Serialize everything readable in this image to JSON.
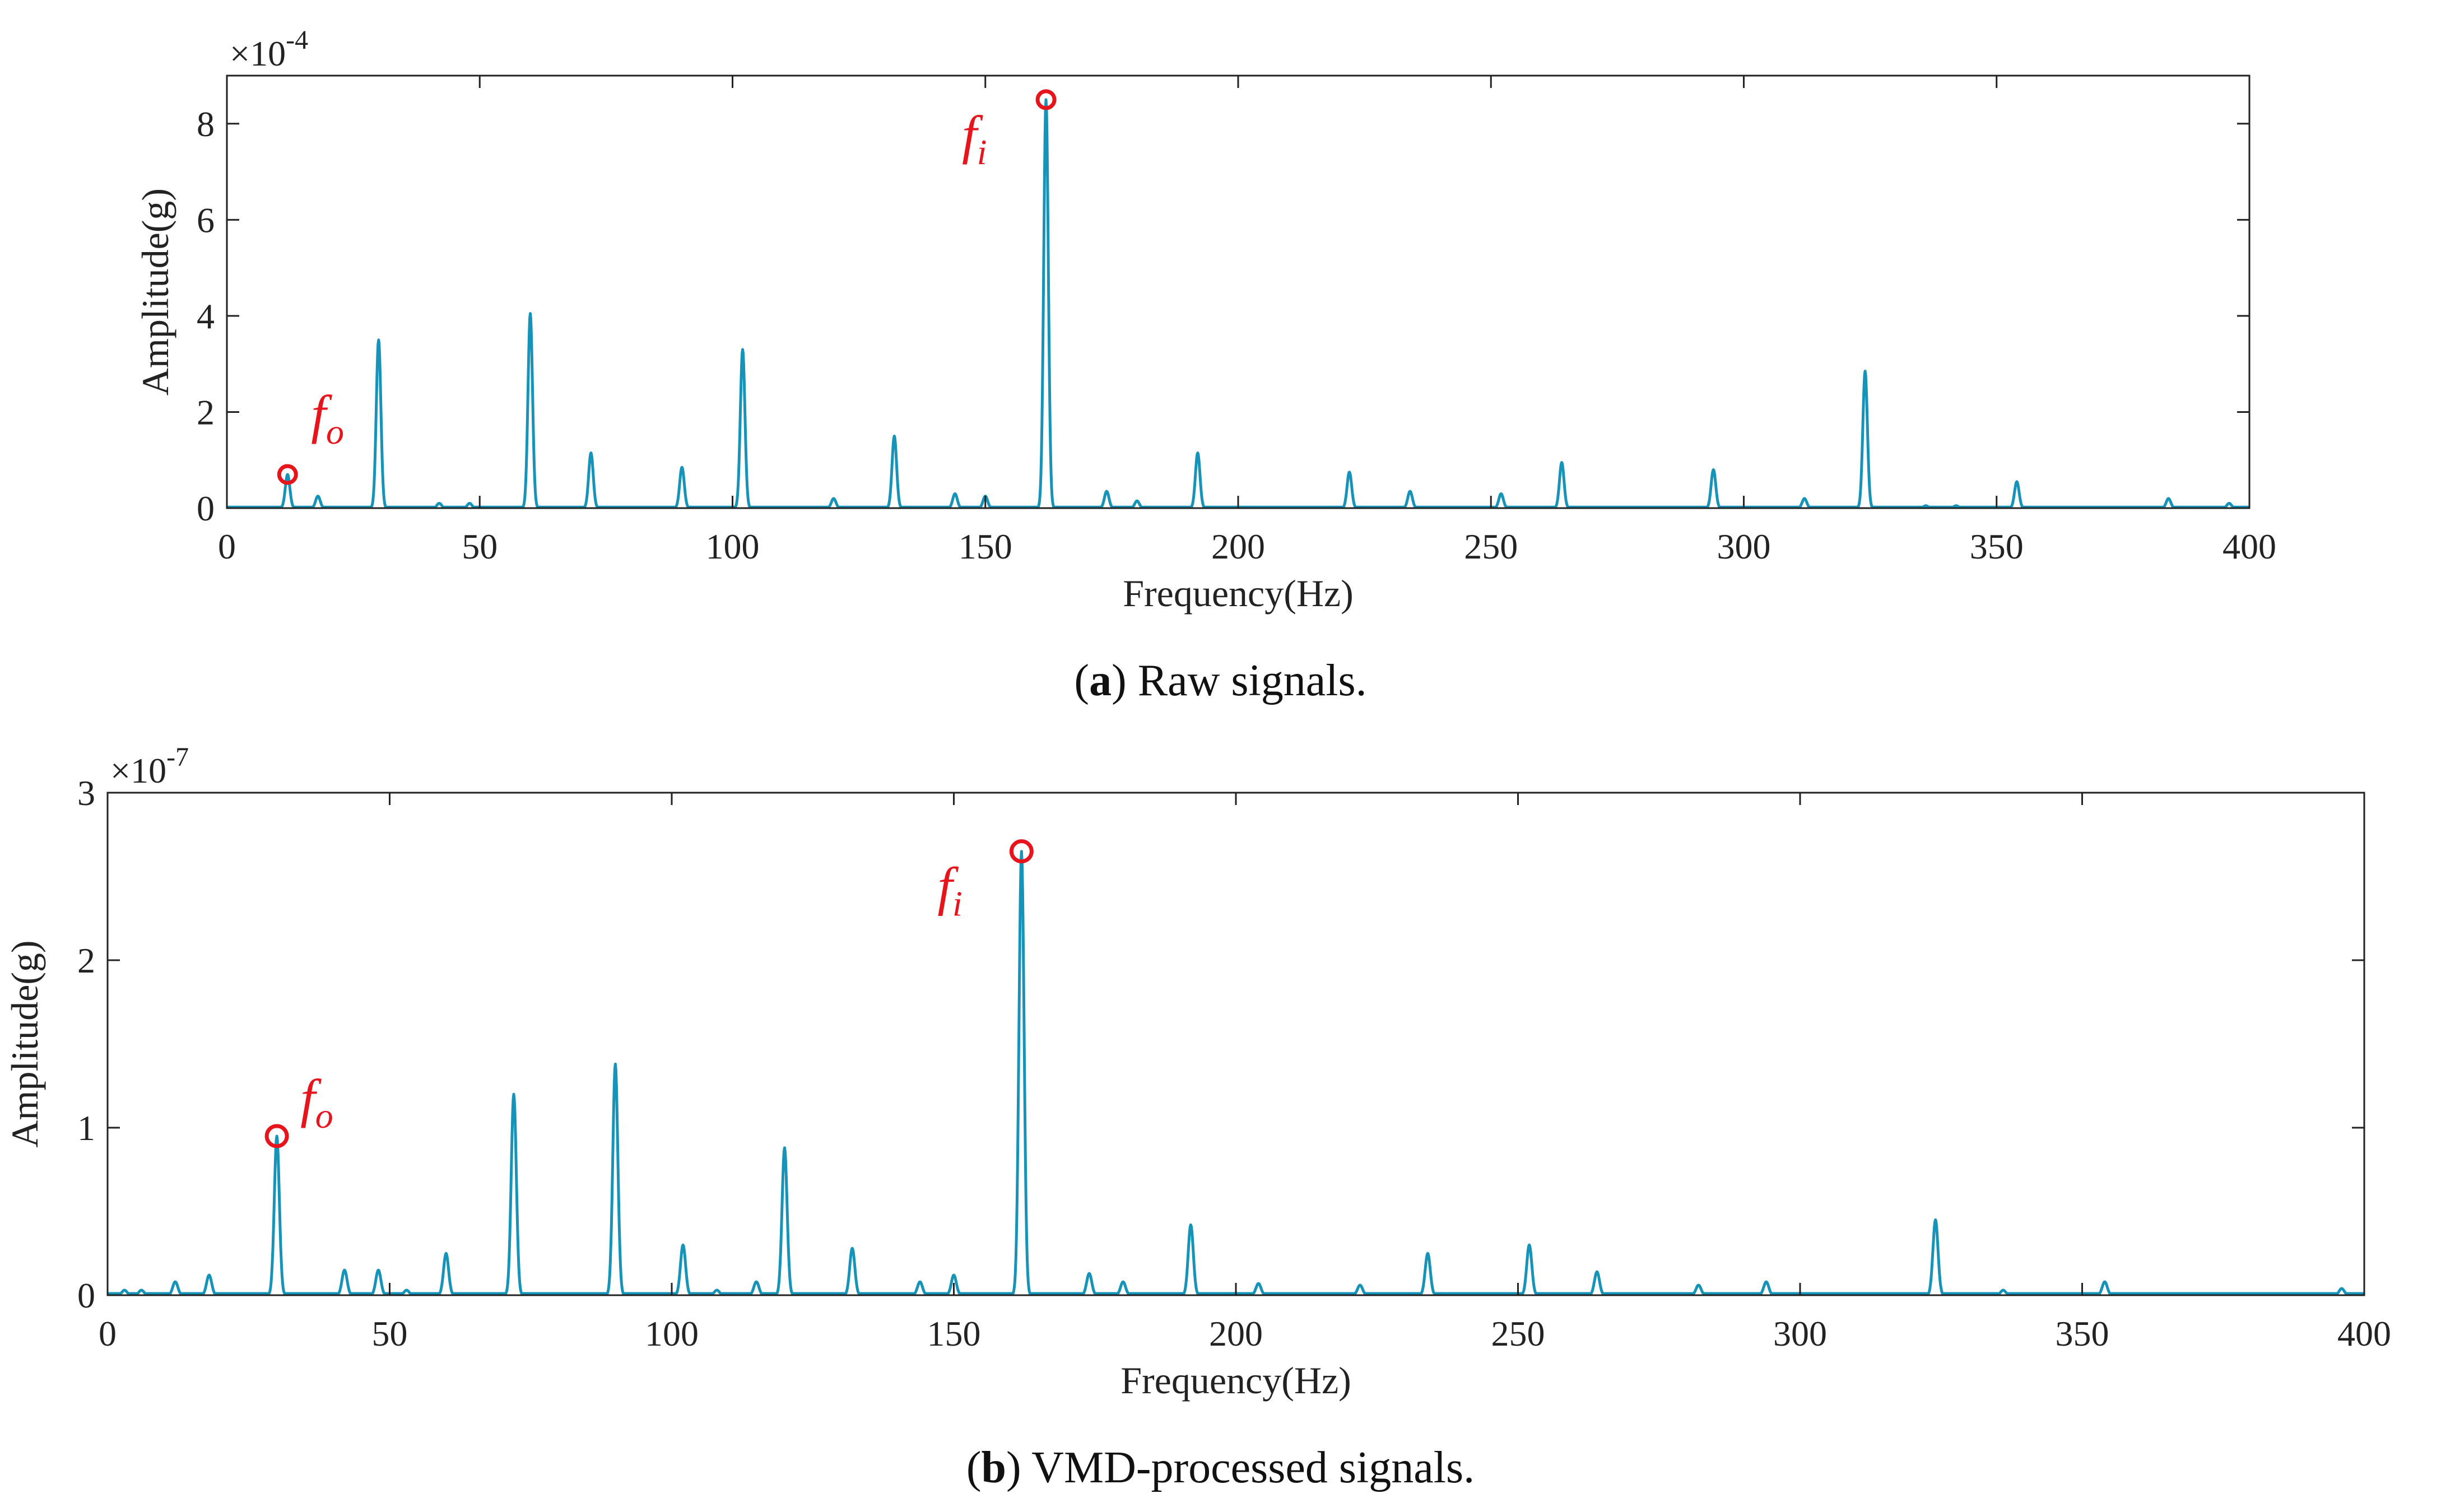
{
  "colors": {
    "line": "#1693b8",
    "marker": "#e8141c",
    "axis": "#222222"
  },
  "chart_data": [
    {
      "type": "line",
      "panel_letter": "a",
      "caption": "Raw signals.",
      "xlabel": "Frequency(Hz)",
      "ylabel": "Amplitude(g)",
      "y_exponent": "-4",
      "xlim": [
        0,
        400
      ],
      "ylim": [
        0,
        9
      ],
      "xticks": [
        0,
        50,
        100,
        150,
        200,
        250,
        300,
        350,
        400
      ],
      "yticks": [
        0,
        2,
        4,
        6,
        8
      ],
      "grid": false,
      "baseline": 0.02,
      "peaks": [
        {
          "x": 12,
          "y": 0.7
        },
        {
          "x": 18,
          "y": 0.25
        },
        {
          "x": 30,
          "y": 3.5
        },
        {
          "x": 42,
          "y": 0.1
        },
        {
          "x": 48,
          "y": 0.1
        },
        {
          "x": 60,
          "y": 4.05
        },
        {
          "x": 72,
          "y": 1.15
        },
        {
          "x": 90,
          "y": 0.85
        },
        {
          "x": 102,
          "y": 3.3
        },
        {
          "x": 120,
          "y": 0.2
        },
        {
          "x": 132,
          "y": 1.5
        },
        {
          "x": 144,
          "y": 0.3
        },
        {
          "x": 150,
          "y": 0.25
        },
        {
          "x": 162,
          "y": 8.5
        },
        {
          "x": 174,
          "y": 0.35
        },
        {
          "x": 180,
          "y": 0.15
        },
        {
          "x": 192,
          "y": 1.15
        },
        {
          "x": 222,
          "y": 0.75
        },
        {
          "x": 234,
          "y": 0.35
        },
        {
          "x": 252,
          "y": 0.3
        },
        {
          "x": 264,
          "y": 0.95
        },
        {
          "x": 294,
          "y": 0.8
        },
        {
          "x": 312,
          "y": 0.2
        },
        {
          "x": 324,
          "y": 2.85
        },
        {
          "x": 336,
          "y": 0.05
        },
        {
          "x": 342,
          "y": 0.05
        },
        {
          "x": 354,
          "y": 0.55
        },
        {
          "x": 384,
          "y": 0.2
        },
        {
          "x": 396,
          "y": 0.1
        }
      ],
      "annotations": [
        {
          "base": "f",
          "sub": "o",
          "x": 12,
          "y": 0.7
        },
        {
          "base": "f",
          "sub": "i",
          "x": 162,
          "y": 8.5
        }
      ]
    },
    {
      "type": "line",
      "panel_letter": "b",
      "caption": "VMD-processed signals.",
      "xlabel": "Frequency(Hz)",
      "ylabel": "Amplitude(g)",
      "y_exponent": "-7",
      "xlim": [
        0,
        400
      ],
      "ylim": [
        0,
        3
      ],
      "xticks": [
        0,
        50,
        100,
        150,
        200,
        250,
        300,
        350,
        400
      ],
      "yticks": [
        0,
        1,
        2,
        3
      ],
      "grid": false,
      "baseline": 0.01,
      "peaks": [
        {
          "x": 3,
          "y": 0.03
        },
        {
          "x": 6,
          "y": 0.03
        },
        {
          "x": 12,
          "y": 0.08
        },
        {
          "x": 18,
          "y": 0.12
        },
        {
          "x": 30,
          "y": 0.95
        },
        {
          "x": 42,
          "y": 0.15
        },
        {
          "x": 48,
          "y": 0.15
        },
        {
          "x": 53,
          "y": 0.03
        },
        {
          "x": 60,
          "y": 0.25
        },
        {
          "x": 72,
          "y": 1.2
        },
        {
          "x": 90,
          "y": 1.38
        },
        {
          "x": 102,
          "y": 0.3
        },
        {
          "x": 108,
          "y": 0.03
        },
        {
          "x": 115,
          "y": 0.08
        },
        {
          "x": 120,
          "y": 0.88
        },
        {
          "x": 132,
          "y": 0.28
        },
        {
          "x": 144,
          "y": 0.08
        },
        {
          "x": 150,
          "y": 0.12
        },
        {
          "x": 162,
          "y": 2.65
        },
        {
          "x": 174,
          "y": 0.13
        },
        {
          "x": 180,
          "y": 0.08
        },
        {
          "x": 192,
          "y": 0.42
        },
        {
          "x": 204,
          "y": 0.07
        },
        {
          "x": 222,
          "y": 0.06
        },
        {
          "x": 234,
          "y": 0.25
        },
        {
          "x": 252,
          "y": 0.3
        },
        {
          "x": 264,
          "y": 0.14
        },
        {
          "x": 282,
          "y": 0.06
        },
        {
          "x": 294,
          "y": 0.08
        },
        {
          "x": 324,
          "y": 0.45
        },
        {
          "x": 336,
          "y": 0.03
        },
        {
          "x": 354,
          "y": 0.08
        },
        {
          "x": 396,
          "y": 0.04
        }
      ],
      "annotations": [
        {
          "base": "f",
          "sub": "o",
          "x": 30,
          "y": 0.95
        },
        {
          "base": "f",
          "sub": "i",
          "x": 162,
          "y": 2.65
        }
      ]
    }
  ]
}
